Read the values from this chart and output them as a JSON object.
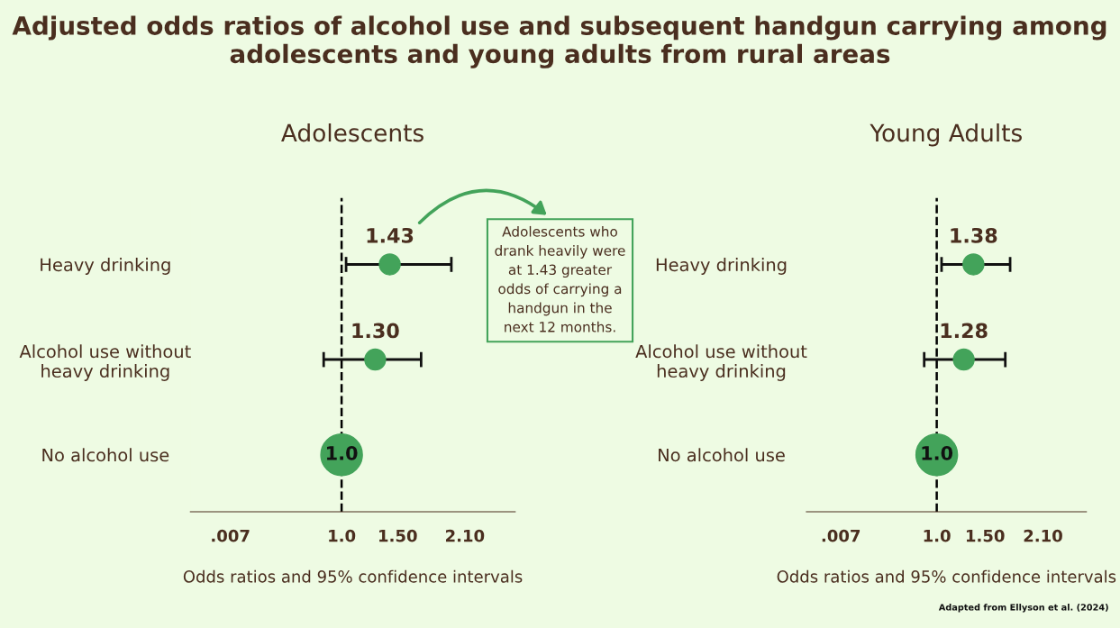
{
  "chart_data": [
    {
      "type": "bubble",
      "orientation": "horizontal",
      "title": "Adjusted odds ratios of alcohol use and subsequent handgun carrying among adolescents and young adults from rural areas",
      "subtitle": "Adolescents",
      "categories": [
        "Heavy drinking",
        "Alcohol use without\nheavy drinking",
        "No alcohol use"
      ],
      "series": [
        {
          "color": "#43a35a",
          "values": [
            1.43,
            1.3,
            1.0
          ],
          "sizes": [
            0.25,
            0.25,
            1
          ],
          "errors": [
            [
              1.04,
              1.98
            ],
            [
              0.84,
              1.71
            ],
            null
          ],
          "value_labels": [
            "1.43",
            "1.30",
            "1.0"
          ]
        }
      ],
      "xlabel": "Odds ratios and 95% confidence intervals",
      "xlim": [
        -0.35,
        2.55
      ],
      "xticks": [
        {
          "value": 0.007,
          "label": ".007"
        },
        {
          "value": 1.0,
          "label": "1.0"
        },
        {
          "value": 1.5,
          "label": "1.50"
        },
        {
          "value": 2.1,
          "label": "2.10"
        }
      ],
      "ref_lines": [
        {
          "axis": "x",
          "value": 1.0,
          "line_style": "dashed",
          "color": "#000000"
        }
      ],
      "annotations": [
        "Adolescents who\ndrank heavily were\nat 1.43 greater\nodds of carrying a\nhandgun in the\nnext 12 months."
      ],
      "grid": false,
      "legend": false,
      "marker": "circle"
    },
    {
      "type": "bubble",
      "orientation": "horizontal",
      "subtitle": "Young Adults",
      "categories": [
        "Heavy drinking",
        "Alcohol use without\nheavy drinking",
        "No alcohol use"
      ],
      "series": [
        {
          "color": "#43a35a",
          "values": [
            1.38,
            1.28,
            1.0
          ],
          "sizes": [
            0.25,
            0.25,
            1
          ],
          "errors": [
            [
              1.05,
              1.76
            ],
            [
              0.87,
              1.71
            ],
            null
          ],
          "value_labels": [
            "1.38",
            "1.28",
            "1.0"
          ]
        }
      ],
      "xlabel": "Odds ratios and 95% confidence intervals",
      "xlim": [
        -0.35,
        2.55
      ],
      "xticks": [
        {
          "value": 0.007,
          "label": ".007"
        },
        {
          "value": 1.0,
          "label": "1.0"
        },
        {
          "value": 1.5,
          "label": "1.50"
        },
        {
          "value": 2.1,
          "label": "2.10"
        }
      ],
      "ref_lines": [
        {
          "axis": "x",
          "value": 1.0,
          "line_style": "dashed",
          "color": "#000000"
        }
      ],
      "annotations": [
        "Adapted from Ellyson et al. (2024)"
      ],
      "grid": false,
      "legend": false,
      "marker": "circle"
    }
  ]
}
